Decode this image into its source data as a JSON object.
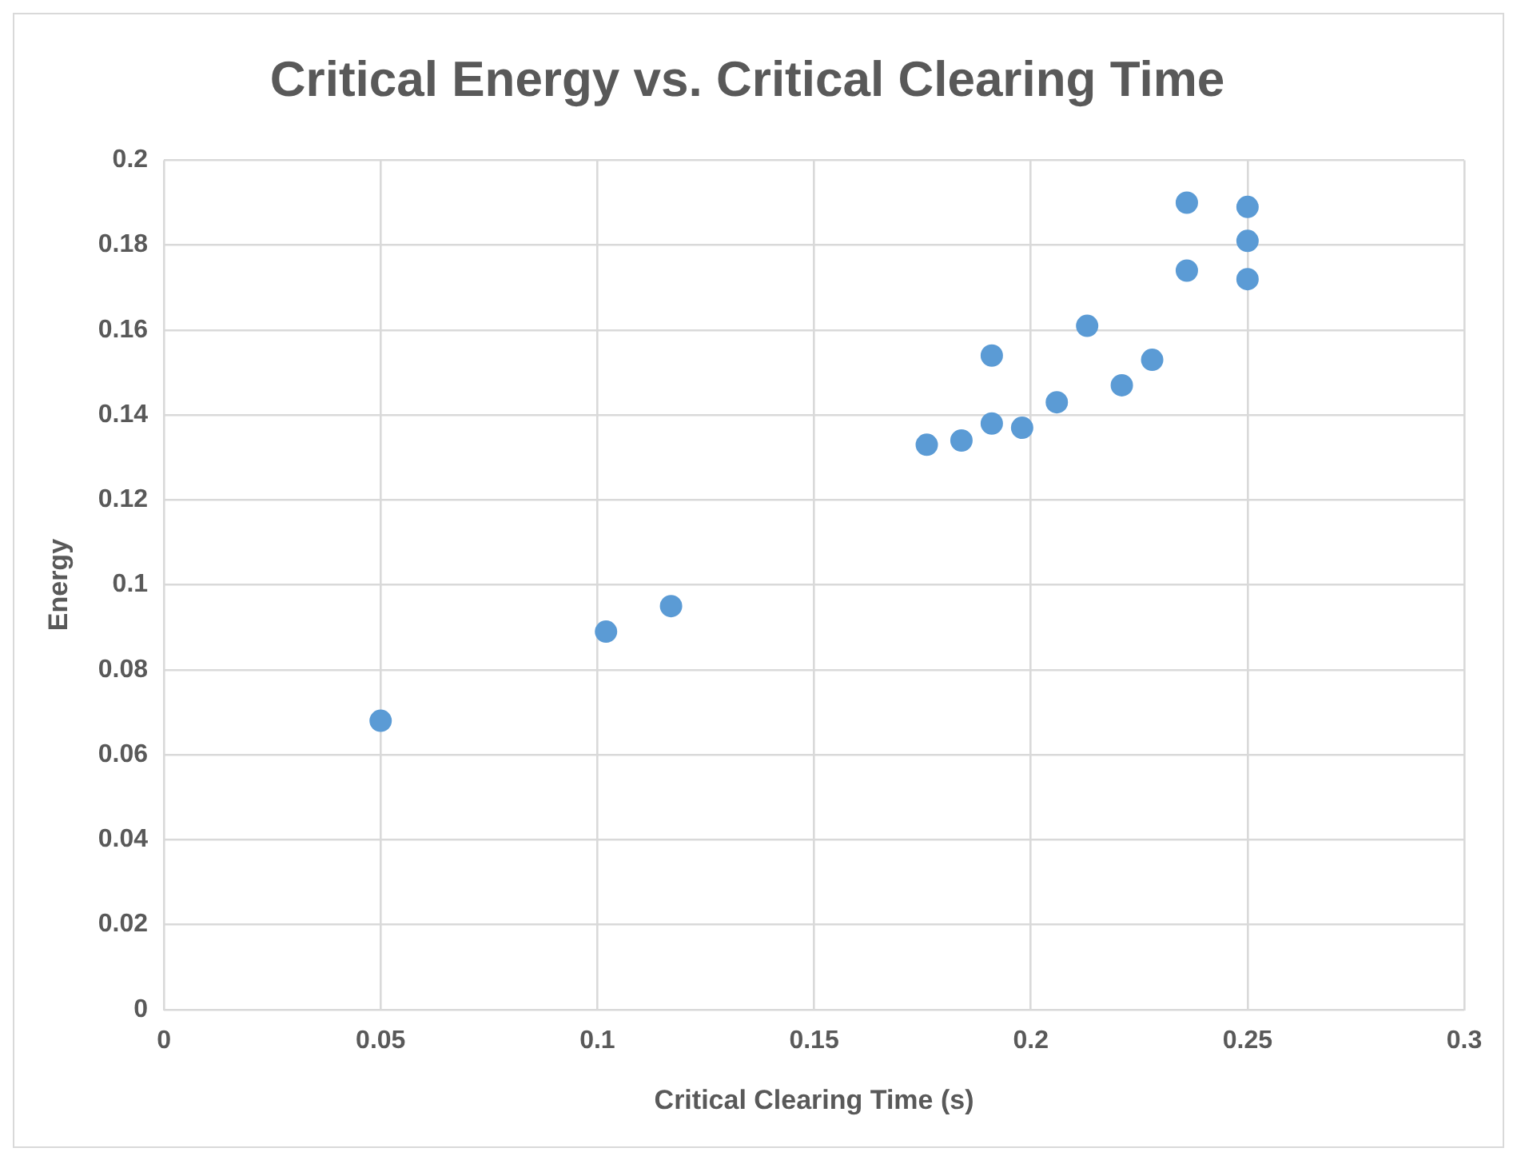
{
  "chart_data": {
    "type": "scatter",
    "title": "Critical Energy vs. Critical Clearing Time",
    "xlabel": "Critical Clearing Time (s)",
    "ylabel": "Energy",
    "x": [
      0.05,
      0.102,
      0.117,
      0.176,
      0.184,
      0.191,
      0.191,
      0.198,
      0.206,
      0.213,
      0.221,
      0.228,
      0.236,
      0.236,
      0.25,
      0.25,
      0.25
    ],
    "series": [
      {
        "color": "#5b9bd5",
        "values": [
          0.068,
          0.089,
          0.095,
          0.133,
          0.134,
          0.138,
          0.154,
          0.137,
          0.143,
          0.161,
          0.147,
          0.153,
          0.19,
          0.174,
          0.189,
          0.181,
          0.172
        ]
      }
    ],
    "xlim": [
      0,
      0.3
    ],
    "xticks": [
      0,
      0.05,
      0.1,
      0.15,
      0.2,
      0.25,
      0.3
    ],
    "ylim": [
      0,
      0.2
    ],
    "yticks": [
      0,
      0.02,
      0.04,
      0.06,
      0.08,
      0.1,
      0.12,
      0.14,
      0.16,
      0.18,
      0.2
    ],
    "grid": true,
    "legend": false,
    "marker": "circle"
  }
}
